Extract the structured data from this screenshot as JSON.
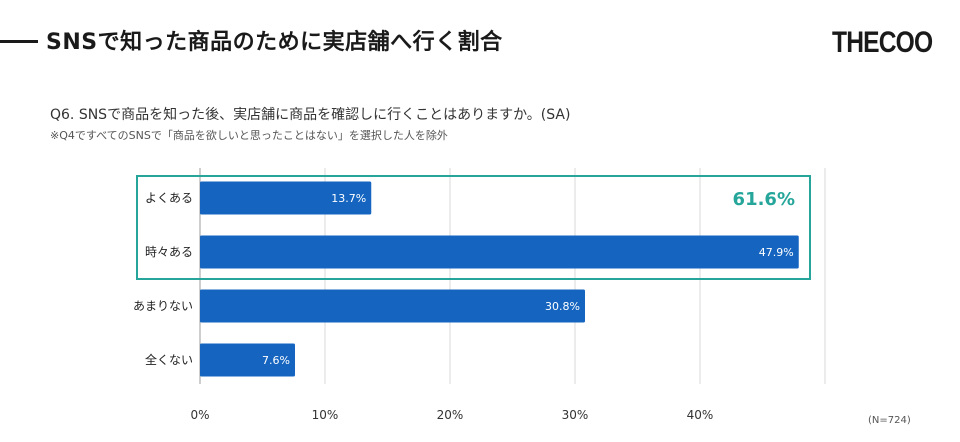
{
  "header": {
    "title": "SNSで知った商品のために実店舗へ行く割合",
    "logo_text": "THECOO"
  },
  "question": "Q6. SNSで商品を知った後、実店舗に商品を確認しに行くことはありますか。(SA)",
  "note": "※Q4ですべてのSNSで「商品を欲しいと思ったことはない」を選択した人を除外",
  "sample_size": "(N=724)",
  "colors": {
    "bar": "#1565c0",
    "highlight": "#26a69a",
    "grid": "#d9d9d9",
    "axis": "#9e9e9e"
  },
  "chart_data": {
    "type": "bar",
    "orientation": "horizontal",
    "categories": [
      "よくある",
      "時々ある",
      "あまりない",
      "全くない"
    ],
    "values": [
      13.7,
      47.9,
      30.8,
      7.6
    ],
    "value_labels": [
      "13.7%",
      "47.9%",
      "30.8%",
      "7.6%"
    ],
    "x_ticks": [
      0,
      10,
      20,
      30,
      40
    ],
    "x_tick_labels": [
      "0%",
      "10%",
      "20%",
      "30%",
      "40%"
    ],
    "xlim": [
      0,
      50
    ],
    "grid": true,
    "highlight": {
      "categories": [
        "よくある",
        "時々ある"
      ],
      "label": "61.6%"
    }
  }
}
